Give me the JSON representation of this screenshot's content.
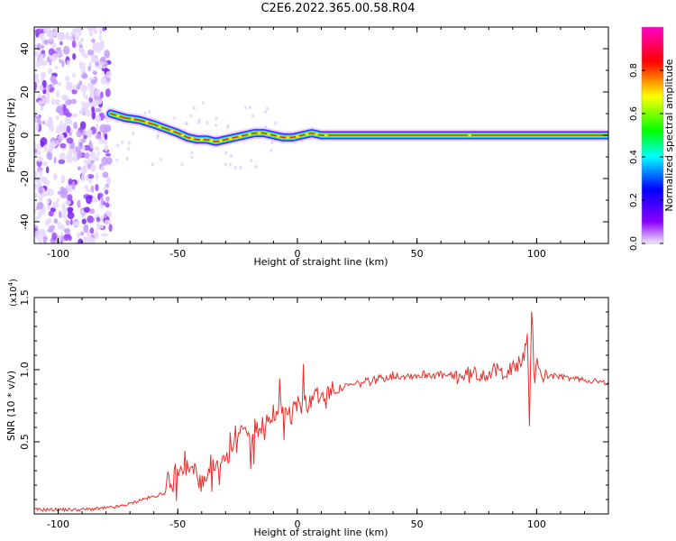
{
  "title": "C2E6.2022.365.00.58.R04",
  "colors": {
    "snr_line": "#e8302a",
    "spectrum_band_hot": "#ff2a00",
    "spectrum_noise": "#7a22f0",
    "colorbar": [
      "#ff00c8",
      "#ff0000",
      "#ffff00",
      "#00ff00",
      "#00ffff",
      "#0000ff",
      "#8c00ff",
      "#f0e6ff"
    ]
  },
  "chart_data": [
    {
      "type": "heatmap",
      "xlabel": "Height of straight line (km)",
      "ylabel": "Frequency (Hz)",
      "xlim": [
        -110,
        130
      ],
      "ylim": [
        -50,
        50
      ],
      "x_ticks": [
        "-100",
        "-50",
        "0",
        "50",
        "100"
      ],
      "y_ticks": [
        "-40",
        "-20",
        "0",
        "20",
        "40"
      ],
      "noise_region_x": [
        -110,
        -78
      ],
      "ridge": {
        "x": [
          -78,
          -72,
          -66,
          -60,
          -55,
          -50,
          -46,
          -42,
          -38,
          -34,
          -30,
          -26,
          -22,
          -18,
          -14,
          -10,
          -6,
          -2,
          2,
          6,
          10,
          14,
          130
        ],
        "freq_hz": [
          10,
          8,
          7,
          5,
          3,
          1,
          -1,
          -2,
          -2,
          -3,
          -2,
          -1,
          0,
          1,
          1,
          0,
          -1,
          -1,
          0,
          1,
          0,
          0,
          0
        ]
      },
      "colorbar": {
        "label": "Normalized spectral amplitude",
        "range": [
          0,
          1
        ],
        "ticks": [
          "0.0",
          "0.2",
          "0.4",
          "0.6",
          "0.8"
        ]
      },
      "grid": false
    },
    {
      "type": "line",
      "xlabel": "Height of straight line (km)",
      "ylabel": "SNR (10 * v/v)",
      "scale_label": "(x10",
      "scale_exp": "4",
      "scale_close": ")",
      "xlim": [
        -110,
        130
      ],
      "ylim": [
        0,
        1.5
      ],
      "x_ticks": [
        "-100",
        "-50",
        "0",
        "50",
        "100"
      ],
      "y_ticks": [
        "0.5",
        "1.0",
        "1.5"
      ],
      "series": [
        {
          "x": [
            -110,
            -90,
            -80,
            -75,
            -70,
            -65,
            -60,
            -55,
            -52,
            -50,
            -48,
            -45,
            -42,
            -40,
            -38,
            -35,
            -32,
            -30,
            -28,
            -25,
            -22,
            -20,
            -18,
            -15,
            -12,
            -10,
            -8,
            -5,
            -2,
            0,
            5,
            10,
            15,
            20,
            25,
            30,
            35,
            40,
            45,
            50,
            55,
            60,
            65,
            70,
            75,
            80,
            85,
            90,
            93,
            95,
            96,
            97,
            98,
            99,
            100,
            102,
            105,
            110,
            115,
            120,
            125,
            130
          ],
          "y": [
            0.03,
            0.03,
            0.04,
            0.05,
            0.07,
            0.1,
            0.12,
            0.15,
            0.2,
            0.25,
            0.35,
            0.3,
            0.28,
            0.15,
            0.22,
            0.3,
            0.35,
            0.4,
            0.45,
            0.55,
            0.6,
            0.5,
            0.55,
            0.6,
            0.65,
            0.7,
            0.68,
            0.72,
            0.75,
            0.78,
            0.8,
            0.82,
            0.85,
            0.88,
            0.9,
            0.92,
            0.94,
            0.96,
            0.96,
            0.96,
            0.97,
            0.96,
            0.95,
            0.96,
            0.97,
            0.98,
            0.99,
            1.0,
            1.05,
            1.1,
            1.3,
            0.6,
            1.45,
            0.9,
            1.1,
            0.95,
            0.96,
            0.95,
            0.94,
            0.93,
            0.92,
            0.9
          ]
        }
      ],
      "grid": false
    }
  ]
}
